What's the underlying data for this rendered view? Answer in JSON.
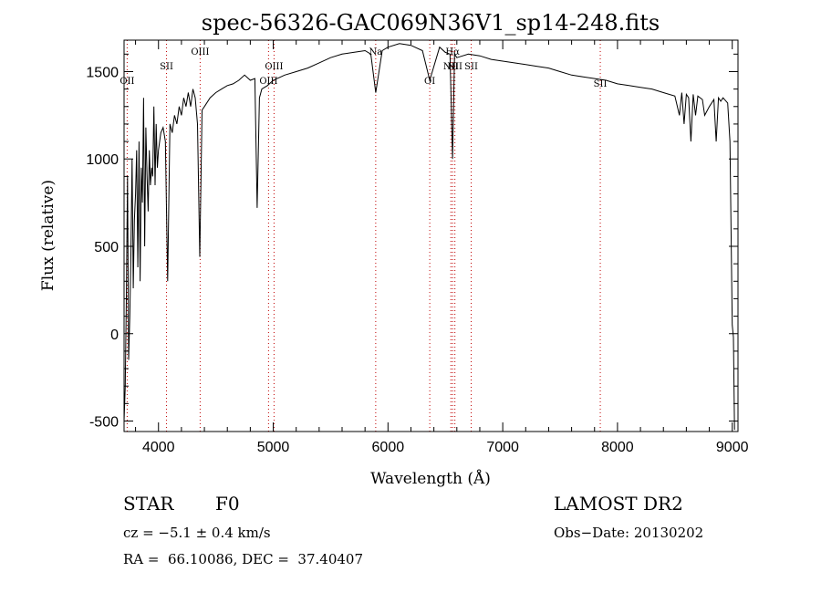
{
  "chart_data": {
    "type": "line",
    "title": "spec-56326-GAC069N36V1_sp14-248.fits",
    "xlabel": "Wavelength (Å)",
    "ylabel": "Flux (relative)",
    "xlim": [
      3700,
      9050
    ],
    "ylim": [
      -560,
      1680
    ],
    "x_ticks": [
      4000,
      5000,
      6000,
      7000,
      8000,
      9000
    ],
    "y_ticks": [
      -500,
      0,
      500,
      1000,
      1500
    ],
    "grid": false,
    "line_markers": [
      {
        "label": "OII",
        "wavelength": 3727
      },
      {
        "label": "SII",
        "wavelength": 4070
      },
      {
        "label": "OIII",
        "wavelength": 4363
      },
      {
        "label": "OIII",
        "wavelength": 4959
      },
      {
        "label": "OIII",
        "wavelength": 5007
      },
      {
        "label": "Na",
        "wavelength": 5893
      },
      {
        "label": "OI",
        "wavelength": 6364
      },
      {
        "label": "NII",
        "wavelength": 6548
      },
      {
        "label": "Hα",
        "wavelength": 6563
      },
      {
        "label": "NII",
        "wavelength": 6583
      },
      {
        "label": "SII",
        "wavelength": 6725
      },
      {
        "label": "SII",
        "wavelength": 7850
      }
    ],
    "series": [
      {
        "x": [
          3700,
          3710,
          3720,
          3730,
          3740,
          3750,
          3760,
          3770,
          3780,
          3790,
          3800,
          3810,
          3820,
          3830,
          3840,
          3850,
          3860,
          3870,
          3880,
          3890,
          3900,
          3910,
          3920,
          3930,
          3940,
          3950,
          3960,
          3970,
          3980,
          3990,
          4000,
          4020,
          4040,
          4060,
          4080,
          4100,
          4120,
          4140,
          4160,
          4180,
          4200,
          4220,
          4240,
          4260,
          4280,
          4300,
          4320,
          4340,
          4360,
          4380,
          4400,
          4450,
          4500,
          4550,
          4600,
          4650,
          4700,
          4750,
          4800,
          4840,
          4860,
          4880,
          4900,
          4950,
          5000,
          5100,
          5200,
          5300,
          5400,
          5500,
          5600,
          5700,
          5800,
          5850,
          5893,
          5950,
          6000,
          6100,
          6200,
          6300,
          6364,
          6450,
          6500,
          6540,
          6563,
          6580,
          6600,
          6700,
          6800,
          6900,
          7000,
          7100,
          7200,
          7300,
          7400,
          7500,
          7600,
          7700,
          7800,
          7900,
          8000,
          8100,
          8200,
          8300,
          8400,
          8500,
          8540,
          8560,
          8580,
          8600,
          8620,
          8640,
          8660,
          8680,
          8700,
          8740,
          8760,
          8800,
          8840,
          8860,
          8880,
          8900,
          8920,
          8960,
          8980,
          9000,
          9010,
          9020
        ],
        "y": [
          -500,
          -300,
          200,
          900,
          -150,
          100,
          450,
          1000,
          260,
          650,
          800,
          1050,
          380,
          1100,
          300,
          950,
          750,
          1350,
          500,
          1180,
          900,
          700,
          1050,
          850,
          950,
          900,
          1300,
          850,
          1200,
          950,
          1050,
          1150,
          1180,
          1100,
          300,
          1200,
          1150,
          1250,
          1200,
          1300,
          1250,
          1350,
          1300,
          1380,
          1300,
          1400,
          1350,
          1200,
          440,
          1280,
          1300,
          1350,
          1380,
          1400,
          1420,
          1430,
          1450,
          1480,
          1450,
          1460,
          720,
          1350,
          1400,
          1420,
          1450,
          1480,
          1500,
          1520,
          1550,
          1580,
          1600,
          1610,
          1620,
          1600,
          1380,
          1620,
          1640,
          1660,
          1650,
          1620,
          1450,
          1640,
          1610,
          1600,
          1000,
          1600,
          1580,
          1600,
          1590,
          1570,
          1560,
          1550,
          1540,
          1530,
          1520,
          1500,
          1480,
          1470,
          1460,
          1450,
          1430,
          1420,
          1410,
          1400,
          1380,
          1360,
          1250,
          1380,
          1200,
          1370,
          1350,
          1100,
          1370,
          1250,
          1360,
          1340,
          1250,
          1300,
          1340,
          1100,
          1350,
          1330,
          1350,
          1320,
          1100,
          50,
          -20,
          -550
        ]
      }
    ]
  },
  "info": {
    "class_label": "STAR",
    "subclass": "F0",
    "survey": "LAMOST DR2",
    "redshift": "cz = −5.1 ± 0.4 km/s",
    "obs_date": "Obs−Date: 20130202",
    "coords": "RA =  66.10086, DEC =  37.40407"
  }
}
